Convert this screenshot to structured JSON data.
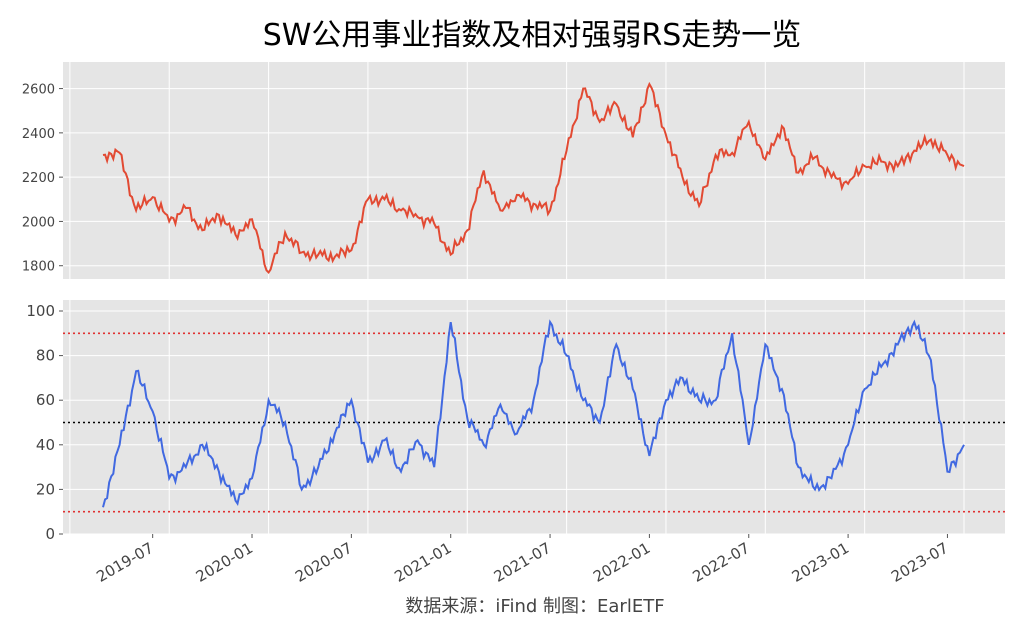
{
  "chart_data": [
    {
      "type": "line",
      "title": "SW公用事业指数及相对强弱RS走势一览",
      "source": "数据来源：iFind 制图：EarlETF",
      "x_ticks": [
        "2019-07",
        "2020-01",
        "2020-07",
        "2021-01",
        "2021-07",
        "2022-01",
        "2022-07",
        "2023-01",
        "2023-07"
      ],
      "series": [
        {
          "name": "SW公用事业指数",
          "color": "#e24a33",
          "ylim": [
            1740,
            2720
          ],
          "y_ticks": [
            1800,
            2000,
            2200,
            2400,
            2600
          ],
          "x": [
            "2019-04",
            "2019-05",
            "2019-06",
            "2019-07",
            "2019-08",
            "2019-09",
            "2019-10",
            "2019-11",
            "2019-12",
            "2020-01",
            "2020-02",
            "2020-03",
            "2020-04",
            "2020-05",
            "2020-06",
            "2020-07",
            "2020-08",
            "2020-09",
            "2020-10",
            "2020-11",
            "2020-12",
            "2021-01",
            "2021-02",
            "2021-03",
            "2021-04",
            "2021-05",
            "2021-06",
            "2021-07",
            "2021-08",
            "2021-09",
            "2021-10",
            "2021-11",
            "2021-12",
            "2022-01",
            "2022-02",
            "2022-03",
            "2022-04",
            "2022-05",
            "2022-06",
            "2022-07",
            "2022-08",
            "2022-09",
            "2022-10",
            "2022-11",
            "2022-12",
            "2023-01",
            "2023-02",
            "2023-03",
            "2023-04",
            "2023-05",
            "2023-06",
            "2023-07",
            "2023-08"
          ],
          "values": [
            2300,
            2310,
            2050,
            2110,
            2000,
            2060,
            1960,
            2030,
            1940,
            2010,
            1770,
            1950,
            1860,
            1850,
            1840,
            1870,
            2100,
            2100,
            2050,
            2020,
            1990,
            1850,
            1960,
            2230,
            2050,
            2120,
            2080,
            2050,
            2320,
            2600,
            2450,
            2530,
            2380,
            2620,
            2390,
            2200,
            2070,
            2300,
            2310,
            2450,
            2280,
            2430,
            2220,
            2290,
            2200,
            2170,
            2250,
            2270,
            2250,
            2320,
            2370,
            2300,
            2250
          ]
        },
        {
          "name": "相对强弱RS",
          "color": "#4169e1",
          "ylim": [
            0,
            100
          ],
          "y_ticks": [
            0,
            20,
            40,
            60,
            80,
            100
          ],
          "x": [
            "2019-04",
            "2019-05",
            "2019-06",
            "2019-07",
            "2019-08",
            "2019-09",
            "2019-10",
            "2019-11",
            "2019-12",
            "2020-01",
            "2020-02",
            "2020-03",
            "2020-04",
            "2020-05",
            "2020-06",
            "2020-07",
            "2020-08",
            "2020-09",
            "2020-10",
            "2020-11",
            "2020-12",
            "2021-01",
            "2021-02",
            "2021-03",
            "2021-04",
            "2021-05",
            "2021-06",
            "2021-07",
            "2021-08",
            "2021-09",
            "2021-10",
            "2021-11",
            "2021-12",
            "2022-01",
            "2022-02",
            "2022-03",
            "2022-04",
            "2022-05",
            "2022-06",
            "2022-07",
            "2022-08",
            "2022-09",
            "2022-10",
            "2022-11",
            "2022-12",
            "2023-01",
            "2023-02",
            "2023-03",
            "2023-04",
            "2023-05",
            "2023-06",
            "2023-07",
            "2023-08"
          ],
          "values": [
            12,
            40,
            73,
            55,
            25,
            30,
            40,
            28,
            15,
            25,
            60,
            50,
            20,
            30,
            45,
            60,
            32,
            42,
            28,
            42,
            30,
            95,
            52,
            40,
            58,
            45,
            60,
            95,
            80,
            60,
            50,
            85,
            65,
            35,
            60,
            70,
            60,
            60,
            90,
            40,
            85,
            65,
            30,
            20,
            25,
            40,
            65,
            75,
            85,
            95,
            78,
            28,
            40
          ]
        }
      ],
      "reference_lines": [
        {
          "value": 90,
          "color": "#e03030"
        },
        {
          "value": 50,
          "color": "#000000"
        },
        {
          "value": 10,
          "color": "#e03030"
        }
      ]
    }
  ]
}
